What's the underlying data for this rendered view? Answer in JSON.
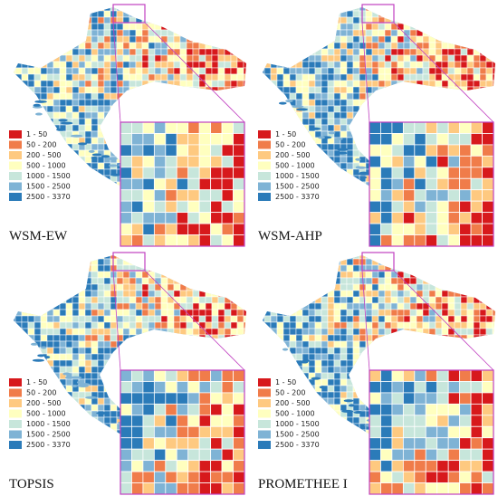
{
  "panels": [
    {
      "title": "WSM-EW"
    },
    {
      "title": "WSM-AHP"
    },
    {
      "title": "TOPSIS"
    },
    {
      "title": "PROMETHEE I"
    }
  ],
  "legend": {
    "items": [
      {
        "label": "1 - 50",
        "color": "#d7191c"
      },
      {
        "label": "50 - 200",
        "color": "#f07c4a"
      },
      {
        "label": "200 - 500",
        "color": "#fec980"
      },
      {
        "label": "500 - 1000",
        "color": "#ffffbf"
      },
      {
        "label": "1000 - 1500",
        "color": "#c7e6db"
      },
      {
        "label": "1500 - 2500",
        "color": "#7fb3d5"
      },
      {
        "label": "2500 - 3370",
        "color": "#2b7bb9"
      }
    ]
  }
}
